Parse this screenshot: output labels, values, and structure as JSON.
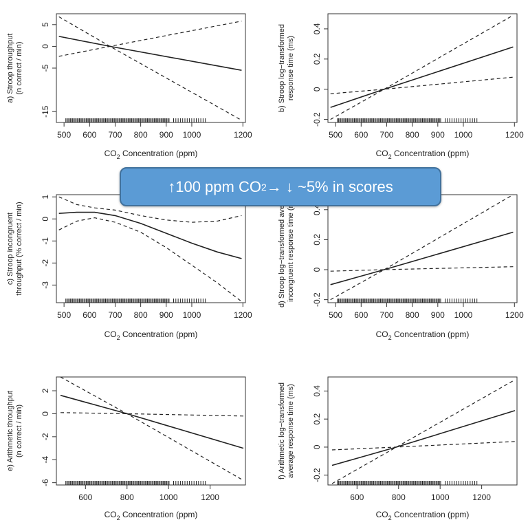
{
  "callout": {
    "before": "↑100 ppm CO",
    "sub": "2",
    "after": " → ↓ ~5% in scores"
  },
  "chart_data": [
    {
      "type": "line",
      "ylabel": [
        "a) Stroop throughput",
        "(n correct / min)"
      ],
      "xlabel": {
        "pre": "CO",
        "sub": "2",
        "post": " Concentration (ppm)"
      },
      "xticks": [
        500,
        600,
        700,
        800,
        900,
        1000,
        1200
      ],
      "yticks": [
        5,
        0,
        -5,
        -15
      ],
      "xlim": [
        470,
        1210
      ],
      "ylim": [
        -17.5,
        7.5
      ],
      "series": [
        {
          "style": "solid",
          "x": [
            480,
            680,
            1195
          ],
          "y": [
            2.3,
            0,
            -5.5
          ]
        },
        {
          "style": "dashed",
          "x": [
            480,
            680,
            1195
          ],
          "y": [
            6.8,
            0,
            -17
          ]
        },
        {
          "style": "dashed",
          "x": [
            480,
            680,
            1195
          ],
          "y": [
            -2.3,
            0,
            5.8
          ]
        }
      ]
    },
    {
      "type": "line",
      "ylabel": [
        "b) Stroop log−transformed",
        "response time (ms)"
      ],
      "xlabel": {
        "pre": "CO",
        "sub": "2",
        "post": " Concentration (ppm)"
      },
      "xticks": [
        500,
        600,
        700,
        800,
        900,
        1000,
        1200
      ],
      "yticks": [
        0.4,
        0.2,
        0.0,
        -0.2
      ],
      "xlim": [
        470,
        1210
      ],
      "ylim": [
        -0.22,
        0.5
      ],
      "series": [
        {
          "style": "solid",
          "x": [
            480,
            690,
            1195
          ],
          "y": [
            -0.12,
            0,
            0.28
          ]
        },
        {
          "style": "dashed",
          "x": [
            480,
            690,
            1195
          ],
          "y": [
            -0.2,
            0,
            0.49
          ]
        },
        {
          "style": "dashed",
          "x": [
            480,
            690,
            1195
          ],
          "y": [
            -0.03,
            0,
            0.08
          ]
        }
      ]
    },
    {
      "type": "line",
      "ylabel": [
        "c) Stroop incongruent",
        "throughput (% correct / min)"
      ],
      "xlabel": {
        "pre": "CO",
        "sub": "2",
        "post": " Concentration (ppm)"
      },
      "xticks": [
        500,
        600,
        700,
        800,
        900,
        1000,
        1200
      ],
      "yticks": [
        1,
        0,
        -1,
        -2,
        -3
      ],
      "xlim": [
        470,
        1210
      ],
      "ylim": [
        -3.8,
        1.1
      ],
      "series": [
        {
          "style": "solid",
          "x": [
            480,
            550,
            620,
            700,
            800,
            900,
            1000,
            1100,
            1195
          ],
          "y": [
            0.25,
            0.3,
            0.3,
            0.15,
            -0.2,
            -0.65,
            -1.1,
            -1.5,
            -1.8
          ]
        },
        {
          "style": "dashed",
          "x": [
            480,
            550,
            620,
            700,
            800,
            900,
            1000,
            1100,
            1195
          ],
          "y": [
            1.0,
            0.65,
            0.5,
            0.4,
            0.15,
            -0.05,
            -0.15,
            -0.1,
            0.15
          ]
        },
        {
          "style": "dashed",
          "x": [
            480,
            550,
            620,
            700,
            800,
            900,
            1000,
            1100,
            1195
          ],
          "y": [
            -0.5,
            -0.1,
            0.05,
            -0.15,
            -0.6,
            -1.3,
            -2.1,
            -2.9,
            -3.75
          ]
        }
      ]
    },
    {
      "type": "line",
      "ylabel": [
        "d) Stroop log−transformed average",
        "incongruent response time (ms)"
      ],
      "xlabel": {
        "pre": "CO",
        "sub": "2",
        "post": " Concentration (ppm)"
      },
      "xticks": [
        500,
        600,
        700,
        800,
        900,
        1000,
        1200
      ],
      "yticks": [
        0.4,
        0.2,
        0.0,
        -0.2
      ],
      "xlim": [
        470,
        1210
      ],
      "ylim": [
        -0.22,
        0.5
      ],
      "series": [
        {
          "style": "solid",
          "x": [
            480,
            690,
            1195
          ],
          "y": [
            -0.1,
            0,
            0.25
          ]
        },
        {
          "style": "dashed",
          "x": [
            480,
            690,
            1195
          ],
          "y": [
            -0.2,
            0,
            0.5
          ]
        },
        {
          "style": "dashed",
          "x": [
            480,
            690,
            1195
          ],
          "y": [
            -0.01,
            0,
            0.02
          ]
        }
      ]
    },
    {
      "type": "line",
      "ylabel": [
        "e) Arithmetic throughput",
        "(n correct / min)"
      ],
      "xlabel": {
        "pre": "CO",
        "sub": "2",
        "post": " Concentration (ppm)"
      },
      "xticks": [
        600,
        800,
        1000,
        1200
      ],
      "yticks": [
        2,
        0,
        -2,
        -4,
        -6
      ],
      "xlim": [
        460,
        1370
      ],
      "ylim": [
        -6.2,
        3.2
      ],
      "series": [
        {
          "style": "solid",
          "x": [
            480,
            800,
            1360
          ],
          "y": [
            1.6,
            0,
            -3.0
          ]
        },
        {
          "style": "dashed",
          "x": [
            480,
            800,
            1360
          ],
          "y": [
            3.2,
            0,
            -5.8
          ]
        },
        {
          "style": "dashed",
          "x": [
            480,
            800,
            1360
          ],
          "y": [
            0.1,
            0,
            -0.2
          ]
        }
      ]
    },
    {
      "type": "line",
      "ylabel": [
        "f) Arithmetic log−transformed",
        "average response time (ms)"
      ],
      "xlabel": {
        "pre": "CO",
        "sub": "2",
        "post": " Concentration (ppm)"
      },
      "xticks": [
        600,
        800,
        1000,
        1200
      ],
      "yticks": [
        0.4,
        0.2,
        0.0,
        -0.2
      ],
      "xlim": [
        460,
        1370
      ],
      "ylim": [
        -0.27,
        0.5
      ],
      "series": [
        {
          "style": "solid",
          "x": [
            480,
            790,
            1360
          ],
          "y": [
            -0.13,
            0,
            0.26
          ]
        },
        {
          "style": "dashed",
          "x": [
            480,
            790,
            1360
          ],
          "y": [
            -0.26,
            0,
            0.48
          ]
        },
        {
          "style": "dashed",
          "x": [
            480,
            790,
            1360
          ],
          "y": [
            -0.02,
            0,
            0.04
          ]
        }
      ]
    }
  ]
}
